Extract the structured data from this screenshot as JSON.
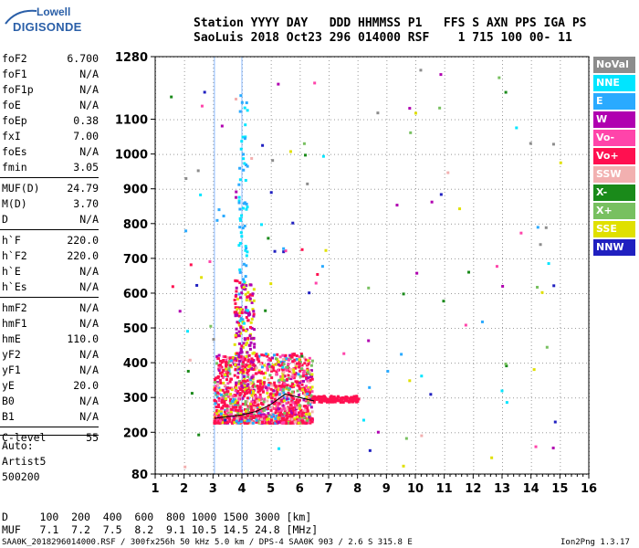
{
  "logo": {
    "line1": "Lowell",
    "line2": "DIGISONDE"
  },
  "header": {
    "line1": "Station YYYY DAY   DDD HHMMSS P1   FFS S AXN PPS IGA PS",
    "line2": "SaoLuis 2018 Oct23 296 014000 RSF    1 715 100 00- 11"
  },
  "params": [
    {
      "name": "foF2",
      "value": "6.700"
    },
    {
      "name": "foF1",
      "value": "N/A"
    },
    {
      "name": "foF1p",
      "value": "N/A"
    },
    {
      "name": "foE",
      "value": "N/A"
    },
    {
      "name": "foEp",
      "value": "0.38"
    },
    {
      "name": "fxI",
      "value": "7.00"
    },
    {
      "name": "foEs",
      "value": "N/A"
    },
    {
      "name": "fmin",
      "value": "3.05"
    },
    {
      "name": "MUF(D)",
      "value": "24.79"
    },
    {
      "name": "M(D)",
      "value": "3.70"
    },
    {
      "name": "D",
      "value": "N/A"
    },
    {
      "name": "h`F",
      "value": "220.0"
    },
    {
      "name": "h`F2",
      "value": "220.0"
    },
    {
      "name": "h`E",
      "value": "N/A"
    },
    {
      "name": "h`Es",
      "value": "N/A"
    },
    {
      "name": "hmF2",
      "value": "N/A"
    },
    {
      "name": "hmF1",
      "value": "N/A"
    },
    {
      "name": "hmE",
      "value": "110.0"
    },
    {
      "name": "yF2",
      "value": "N/A"
    },
    {
      "name": "yF1",
      "value": "N/A"
    },
    {
      "name": "yE",
      "value": "20.0"
    },
    {
      "name": "B0",
      "value": "N/A"
    },
    {
      "name": "B1",
      "value": "N/A"
    },
    {
      "name": "C-level",
      "value": "55"
    }
  ],
  "auto": {
    "label": "Auto:",
    "artist": "Artist5",
    "version": "500200"
  },
  "legend": [
    {
      "label": "NoVal",
      "color": "#8c8c8c"
    },
    {
      "label": "NNE",
      "color": "#00e5ff"
    },
    {
      "label": "E",
      "color": "#2aaaff"
    },
    {
      "label": "W",
      "color": "#b000b0"
    },
    {
      "label": "Vo-",
      "color": "#ff44aa"
    },
    {
      "label": "Vo+",
      "color": "#ff1050"
    },
    {
      "label": "SSW",
      "color": "#f2b0b0"
    },
    {
      "label": "X-",
      "color": "#1a8a1a"
    },
    {
      "label": "X+",
      "color": "#78c060"
    },
    {
      "label": "SSE",
      "color": "#e0e000"
    },
    {
      "label": "NNW",
      "color": "#2020c0"
    }
  ],
  "bottom": {
    "d_line": "D     100  200  400  600  800 1000 1500 3000 [km]",
    "muf_line": "MUF   7.1  7.2  7.5  8.2  9.1 10.5 14.5 24.8 [MHz]"
  },
  "footer": {
    "left": "SAA0K_2018296014000.RSF / 300fx256h 50 kHz 5.0 km / DPS-4 SAA0K 903 / 2.6 S 315.8 E",
    "right": "Ion2Png 1.3.17"
  },
  "chart_data": {
    "type": "scatter",
    "x_ticks": [
      1,
      2,
      3,
      4,
      5,
      6,
      7,
      8,
      9,
      10,
      11,
      12,
      13,
      14,
      15,
      16
    ],
    "y_ticks": [
      80,
      200,
      300,
      400,
      500,
      600,
      700,
      800,
      900,
      1000,
      1100,
      1280
    ],
    "xlim": [
      1,
      16
    ],
    "ylim": [
      80,
      1280
    ],
    "grid": true,
    "fmin_marker": 3.05,
    "fo_marker": 4.0,
    "trace": {
      "x": [
        3.05,
        3.5,
        4.0,
        4.5,
        5.0,
        5.5,
        6.0,
        6.5
      ],
      "y": [
        240,
        245,
        250,
        260,
        280,
        310,
        300,
        290
      ]
    }
  }
}
